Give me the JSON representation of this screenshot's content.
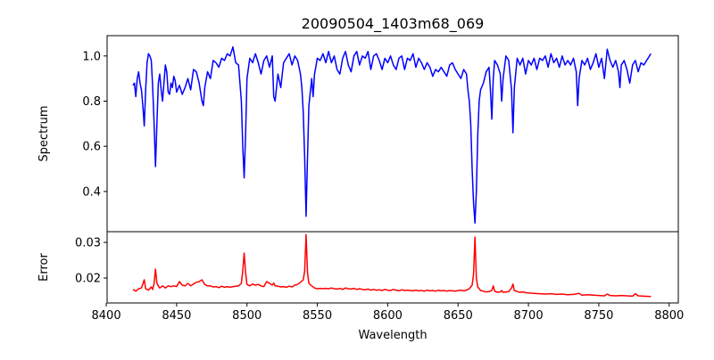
{
  "chart_data": [
    {
      "type": "line",
      "title": "20090504_1403m68_069",
      "xlabel": "",
      "ylabel": "Spectrum",
      "xlim": [
        8400.6,
        8806.5
      ],
      "ylim": [
        0.222,
        1.09
      ],
      "yticks": [
        0.4,
        0.6,
        0.8,
        1.0
      ],
      "ytick_labels": [
        "0.4",
        "0.6",
        "0.8",
        "1.0"
      ],
      "grid": false,
      "series": [
        {
          "name": "Spectrum",
          "color": "#0000ff",
          "x": [
            8419,
            8420,
            8421,
            8422,
            8423,
            8424,
            8425,
            8426,
            8427,
            8428,
            8429,
            8430,
            8431,
            8432,
            8433,
            8434,
            8435,
            8436,
            8437,
            8438,
            8439,
            8440,
            8441,
            8442,
            8443,
            8444,
            8445,
            8446,
            8447,
            8448,
            8449,
            8450,
            8452,
            8454,
            8456,
            8458,
            8460,
            8462,
            8464,
            8466,
            8468,
            8469,
            8470,
            8472,
            8474,
            8476,
            8478,
            8480,
            8482,
            8484,
            8486,
            8488,
            8490,
            8492,
            8494,
            8496,
            8497,
            8498,
            8499,
            8500,
            8502,
            8504,
            8506,
            8508,
            8510,
            8512,
            8514,
            8516,
            8518,
            8519,
            8520,
            8522,
            8524,
            8526,
            8528,
            8530,
            8532,
            8534,
            8536,
            8538,
            8539,
            8540,
            8541,
            8542,
            8543,
            8544,
            8546,
            8547,
            8548,
            8550,
            8552,
            8554,
            8556,
            8558,
            8560,
            8562,
            8564,
            8566,
            8568,
            8570,
            8572,
            8574,
            8576,
            8578,
            8580,
            8582,
            8584,
            8586,
            8588,
            8590,
            8592,
            8594,
            8596,
            8598,
            8600,
            8602,
            8604,
            8606,
            8608,
            8610,
            8612,
            8614,
            8616,
            8618,
            8620,
            8622,
            8624,
            8626,
            8628,
            8630,
            8632,
            8634,
            8636,
            8638,
            8640,
            8642,
            8644,
            8646,
            8648,
            8650,
            8652,
            8654,
            8656,
            8657,
            8658,
            8659,
            8660,
            8661,
            8662,
            8663,
            8664,
            8665,
            8666,
            8668,
            8670,
            8672,
            8673,
            8674,
            8675,
            8676,
            8678,
            8680,
            8681,
            8682,
            8684,
            8686,
            8688,
            8689,
            8690,
            8692,
            8694,
            8696,
            8698,
            8700,
            8702,
            8704,
            8706,
            8708,
            8710,
            8712,
            8714,
            8716,
            8718,
            8720,
            8722,
            8724,
            8726,
            8728,
            8730,
            8732,
            8734,
            8735,
            8736,
            8738,
            8740,
            8742,
            8744,
            8746,
            8748,
            8750,
            8752,
            8754,
            8756,
            8758,
            8760,
            8762,
            8764,
            8765,
            8766,
            8768,
            8770,
            8772,
            8774,
            8776,
            8778,
            8780,
            8782,
            8784,
            8786,
            8787
          ],
          "y": [
            0.87,
            0.88,
            0.82,
            0.9,
            0.93,
            0.88,
            0.85,
            0.78,
            0.69,
            0.85,
            0.97,
            1.01,
            1.0,
            0.98,
            0.86,
            0.7,
            0.51,
            0.7,
            0.88,
            0.92,
            0.85,
            0.8,
            0.88,
            0.96,
            0.93,
            0.84,
            0.83,
            0.88,
            0.86,
            0.91,
            0.89,
            0.84,
            0.87,
            0.83,
            0.86,
            0.9,
            0.85,
            0.94,
            0.93,
            0.88,
            0.8,
            0.78,
            0.86,
            0.93,
            0.9,
            0.98,
            0.97,
            0.95,
            0.99,
            0.98,
            1.01,
            1.0,
            1.04,
            0.97,
            0.96,
            0.8,
            0.6,
            0.46,
            0.65,
            0.9,
            0.99,
            0.97,
            1.01,
            0.97,
            0.92,
            0.98,
            1.0,
            0.95,
            1.0,
            0.82,
            0.8,
            0.92,
            0.86,
            0.97,
            0.99,
            1.01,
            0.96,
            1.0,
            0.98,
            0.92,
            0.86,
            0.75,
            0.55,
            0.29,
            0.55,
            0.78,
            0.9,
            0.82,
            0.92,
            0.99,
            0.98,
            1.01,
            0.97,
            1.02,
            0.97,
            1.0,
            0.94,
            0.92,
            0.99,
            1.02,
            0.96,
            0.93,
            1.0,
            1.02,
            0.96,
            1.0,
            0.99,
            1.02,
            0.94,
            1.0,
            1.01,
            0.98,
            0.94,
            0.99,
            0.97,
            1.0,
            0.96,
            0.94,
            0.99,
            1.0,
            0.94,
            0.99,
            0.98,
            1.01,
            0.95,
            0.99,
            0.97,
            0.94,
            0.97,
            0.95,
            0.91,
            0.94,
            0.93,
            0.95,
            0.93,
            0.91,
            0.96,
            0.97,
            0.94,
            0.92,
            0.9,
            0.94,
            0.92,
            0.85,
            0.8,
            0.7,
            0.5,
            0.35,
            0.26,
            0.4,
            0.65,
            0.8,
            0.85,
            0.88,
            0.93,
            0.95,
            0.85,
            0.72,
            0.9,
            0.98,
            0.96,
            0.92,
            0.8,
            0.9,
            1.0,
            0.98,
            0.85,
            0.66,
            0.86,
            0.99,
            0.96,
            0.99,
            0.92,
            0.98,
            0.96,
            0.99,
            0.94,
            0.99,
            0.98,
            1.0,
            0.95,
            1.01,
            0.97,
            0.99,
            0.95,
            1.0,
            0.96,
            0.98,
            0.96,
            0.99,
            0.93,
            0.78,
            0.9,
            0.98,
            0.96,
            0.99,
            0.94,
            0.97,
            1.01,
            0.95,
            0.99,
            0.9,
            1.03,
            0.98,
            0.95,
            0.98,
            0.93,
            0.86,
            0.96,
            0.98,
            0.94,
            0.88,
            0.96,
            0.98,
            0.93,
            0.97,
            0.96,
            0.98,
            1.0,
            1.01
          ]
        }
      ]
    },
    {
      "type": "line",
      "xlabel": "Wavelength",
      "ylabel": "Error",
      "xlim": [
        8400.6,
        8806.5
      ],
      "ylim": [
        0.013,
        0.033
      ],
      "xticks": [
        8400,
        8450,
        8500,
        8550,
        8600,
        8650,
        8700,
        8750,
        8800
      ],
      "xtick_labels": [
        "8400",
        "8450",
        "8500",
        "8550",
        "8600",
        "8650",
        "8700",
        "8750",
        "8800"
      ],
      "yticks": [
        0.02,
        0.03
      ],
      "ytick_labels": [
        "0.02",
        "0.03"
      ],
      "grid": false,
      "series": [
        {
          "name": "Error",
          "color": "#ff0000",
          "x": [
            8419,
            8421,
            8423,
            8425,
            8427,
            8428,
            8430,
            8432,
            8433,
            8434,
            8435,
            8436,
            8438,
            8440,
            8442,
            8444,
            8446,
            8448,
            8450,
            8452,
            8454,
            8456,
            8458,
            8460,
            8462,
            8464,
            8466,
            8468,
            8470,
            8472,
            8474,
            8476,
            8478,
            8480,
            8482,
            8484,
            8486,
            8488,
            8490,
            8492,
            8494,
            8496,
            8497,
            8498,
            8499,
            8500,
            8502,
            8504,
            8506,
            8508,
            8510,
            8512,
            8514,
            8516,
            8518,
            8519,
            8520,
            8522,
            8524,
            8526,
            8528,
            8530,
            8532,
            8534,
            8536,
            8538,
            8540,
            8541,
            8542,
            8543,
            8544,
            8546,
            8548,
            8550,
            8552,
            8554,
            8556,
            8558,
            8560,
            8562,
            8564,
            8566,
            8568,
            8570,
            8572,
            8574,
            8576,
            8578,
            8580,
            8582,
            8584,
            8586,
            8588,
            8590,
            8592,
            8594,
            8596,
            8598,
            8600,
            8602,
            8604,
            8606,
            8608,
            8610,
            8612,
            8614,
            8616,
            8618,
            8620,
            8622,
            8624,
            8626,
            8628,
            8630,
            8632,
            8634,
            8636,
            8638,
            8640,
            8642,
            8644,
            8646,
            8648,
            8650,
            8652,
            8654,
            8656,
            8658,
            8660,
            8661,
            8662,
            8663,
            8664,
            8666,
            8668,
            8670,
            8672,
            8674,
            8675,
            8676,
            8678,
            8680,
            8681,
            8682,
            8684,
            8686,
            8688,
            8689,
            8690,
            8692,
            8694,
            8696,
            8698,
            8700,
            8704,
            8708,
            8712,
            8716,
            8720,
            8724,
            8728,
            8732,
            8736,
            8738,
            8742,
            8746,
            8750,
            8754,
            8756,
            8758,
            8762,
            8766,
            8770,
            8774,
            8776,
            8778,
            8782,
            8787
          ],
          "y": [
            0.0168,
            0.0163,
            0.017,
            0.0172,
            0.0195,
            0.017,
            0.0166,
            0.0175,
            0.0168,
            0.0185,
            0.0225,
            0.0185,
            0.0172,
            0.0178,
            0.0172,
            0.0178,
            0.0176,
            0.0178,
            0.0176,
            0.019,
            0.018,
            0.0178,
            0.0185,
            0.0178,
            0.0183,
            0.0188,
            0.019,
            0.0195,
            0.0182,
            0.0178,
            0.0178,
            0.0175,
            0.0176,
            0.0173,
            0.0177,
            0.0174,
            0.0176,
            0.0174,
            0.0176,
            0.0177,
            0.0178,
            0.0185,
            0.022,
            0.027,
            0.0215,
            0.0182,
            0.0178,
            0.0183,
            0.018,
            0.0182,
            0.0178,
            0.0176,
            0.019,
            0.0185,
            0.018,
            0.0186,
            0.0178,
            0.0177,
            0.0175,
            0.0176,
            0.0174,
            0.0177,
            0.0175,
            0.018,
            0.0182,
            0.0188,
            0.0195,
            0.022,
            0.0322,
            0.0215,
            0.0185,
            0.0178,
            0.0172,
            0.017,
            0.0171,
            0.017,
            0.0171,
            0.017,
            0.0172,
            0.017,
            0.0169,
            0.0171,
            0.0168,
            0.0172,
            0.017,
            0.0169,
            0.0171,
            0.0168,
            0.017,
            0.0168,
            0.0167,
            0.0169,
            0.0166,
            0.0168,
            0.0166,
            0.0167,
            0.0165,
            0.0168,
            0.0166,
            0.0165,
            0.0168,
            0.0166,
            0.0164,
            0.0167,
            0.0165,
            0.0166,
            0.0165,
            0.0164,
            0.0166,
            0.0164,
            0.0165,
            0.0163,
            0.0166,
            0.0164,
            0.0165,
            0.0163,
            0.0166,
            0.0164,
            0.0165,
            0.0163,
            0.0165,
            0.0164,
            0.0163,
            0.0165,
            0.0166,
            0.0164,
            0.0166,
            0.017,
            0.018,
            0.021,
            0.0315,
            0.02,
            0.0175,
            0.0165,
            0.0163,
            0.0161,
            0.0162,
            0.0165,
            0.0178,
            0.0163,
            0.016,
            0.0161,
            0.0165,
            0.016,
            0.0161,
            0.0162,
            0.0172,
            0.0183,
            0.0165,
            0.0162,
            0.016,
            0.0161,
            0.0159,
            0.0158,
            0.0157,
            0.0156,
            0.0155,
            0.0156,
            0.0154,
            0.0155,
            0.0153,
            0.0154,
            0.0157,
            0.0152,
            0.0153,
            0.0152,
            0.0151,
            0.015,
            0.0155,
            0.0151,
            0.015,
            0.0151,
            0.015,
            0.0149,
            0.0156,
            0.015,
            0.0149,
            0.0148
          ]
        }
      ]
    }
  ]
}
